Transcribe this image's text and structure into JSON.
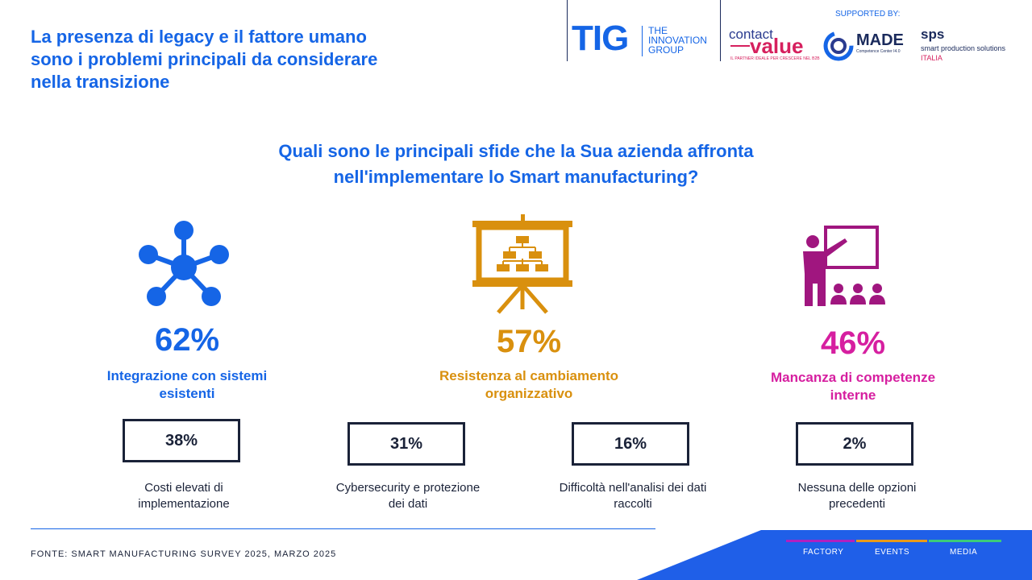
{
  "header": {
    "title_lines": [
      "La presenza di legacy e il fattore umano",
      "sono i problemi principali da considerare",
      "nella transizione"
    ],
    "supported_by": "SUPPORTED BY:",
    "logos": {
      "tig_mark": "TIG",
      "tig_text": [
        "THE",
        "INNOVATION",
        "GROUP"
      ],
      "contact": "contact",
      "value": "value",
      "contact_tagline": "IL PARTNER IDEALE PER CRESCERE NEL B2B",
      "made": "MADE",
      "made_sub": "Competence Center I4.0",
      "sps": "sps",
      "sps_sub": "smart production solutions",
      "sps_italia": "ITALIA"
    }
  },
  "question_lines": [
    "Quali sono le principali sfide che la Sua azienda affronta",
    "nell'implementare lo Smart manufacturing?"
  ],
  "top_items": [
    {
      "percent": "62%",
      "label_lines": [
        "Integrazione con sistemi",
        "esistenti"
      ],
      "icon": "network-icon",
      "color": "#1565e6"
    },
    {
      "percent": "57%",
      "label_lines": [
        "Resistenza al cambiamento",
        "organizzativo"
      ],
      "icon": "org-chart-board-icon",
      "color": "#d9900e"
    },
    {
      "percent": "46%",
      "label_lines": [
        "Mancanza di competenze",
        "interne"
      ],
      "icon": "teacher-icon",
      "color": "#d61fa0"
    }
  ],
  "bottom_items": [
    {
      "percent": "38%",
      "label_lines": [
        "Costi elevati di",
        "implementazione"
      ]
    },
    {
      "percent": "31%",
      "label_lines": [
        "Cybersecurity e protezione",
        "dei dati"
      ]
    },
    {
      "percent": "16%",
      "label_lines": [
        "Difficoltà nell'analisi dei dati",
        "raccolti"
      ]
    },
    {
      "percent": "2%",
      "label_lines": [
        "Nessuna delle opzioni",
        "precedenti"
      ]
    }
  ],
  "footer": {
    "source": "FONTE: SMART MANUFACTURING SURVEY 2025, MARZO 2025",
    "labels": [
      "FACTORY",
      "EVENTS",
      "MEDIA"
    ]
  }
}
